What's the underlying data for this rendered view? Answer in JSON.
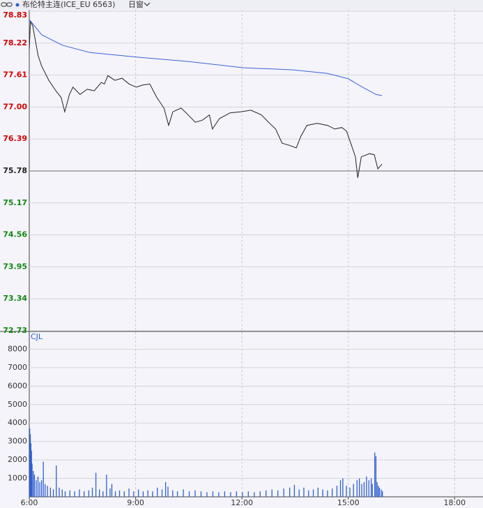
{
  "header": {
    "title": "布伦特主连(ICE_EU 6563)",
    "window": "日窗"
  },
  "chart_data": [
    {
      "type": "line",
      "xlim": [
        360,
        1128
      ],
      "ylim": [
        72.73,
        78.83
      ],
      "yticks": [
        {
          "value": 78.83,
          "label": "78.83"
        },
        {
          "value": 78.22,
          "label": "78.22"
        },
        {
          "value": 77.61,
          "label": "77.61"
        },
        {
          "value": 77.0,
          "label": "77.00"
        },
        {
          "value": 76.39,
          "label": "76.39"
        },
        {
          "value": 75.78,
          "label": "75.78"
        },
        {
          "value": 75.17,
          "label": "75.17"
        },
        {
          "value": 74.56,
          "label": "74.56"
        },
        {
          "value": 73.95,
          "label": "73.95"
        },
        {
          "value": 73.34,
          "label": "73.34"
        },
        {
          "value": 72.73,
          "label": "72.73"
        }
      ],
      "xticks": [
        540,
        720,
        900,
        1080
      ],
      "grid": true,
      "prev_close": 75.78,
      "up_color": "#d40000",
      "down_color": "#118811",
      "series": [
        {
          "color": "#222222",
          "x": [
            360,
            362,
            366,
            375,
            381,
            393,
            405,
            414,
            420,
            428,
            434,
            446,
            458,
            470,
            482,
            487,
            493,
            505,
            517,
            529,
            541,
            552,
            564,
            576,
            588,
            596,
            603,
            617,
            629,
            641,
            653,
            665,
            670,
            682,
            700,
            718,
            735,
            753,
            765,
            777,
            788,
            800,
            812,
            820,
            830,
            847,
            865,
            877,
            889,
            897,
            906,
            912,
            916,
            922,
            936,
            944,
            950,
            957
          ],
          "values": [
            78.11,
            78.64,
            78.54,
            77.98,
            77.78,
            77.51,
            77.31,
            77.18,
            76.91,
            77.24,
            77.38,
            77.24,
            77.34,
            77.31,
            77.47,
            77.44,
            77.6,
            77.51,
            77.55,
            77.44,
            77.38,
            77.42,
            77.44,
            77.18,
            76.98,
            76.65,
            76.91,
            76.98,
            76.85,
            76.71,
            76.75,
            76.85,
            76.58,
            76.78,
            76.89,
            76.91,
            76.94,
            76.85,
            76.71,
            76.58,
            76.31,
            76.27,
            76.22,
            76.45,
            76.65,
            76.69,
            76.65,
            76.58,
            76.61,
            76.54,
            76.25,
            76.05,
            75.65,
            76.05,
            76.11,
            76.09,
            75.82,
            75.91
          ]
        },
        {
          "color": "#3b63d6",
          "x": [
            360,
            381,
            416,
            463,
            546,
            629,
            723,
            806,
            865,
            900,
            924,
            947,
            957
          ],
          "values": [
            78.67,
            78.38,
            78.18,
            78.04,
            77.95,
            77.87,
            77.75,
            77.71,
            77.64,
            77.54,
            77.38,
            77.24,
            77.22
          ]
        }
      ]
    },
    {
      "type": "bar",
      "label": "CJL",
      "xlim": [
        360,
        1128
      ],
      "ylim": [
        0,
        9000
      ],
      "yticks": [
        1000,
        2000,
        3000,
        4000,
        5000,
        6000,
        7000,
        8000
      ],
      "xticks": [
        {
          "value": 360,
          "label": "6:00"
        },
        {
          "value": 540,
          "label": "9:00"
        },
        {
          "value": 720,
          "label": "12:00"
        },
        {
          "value": 900,
          "label": "15:00"
        },
        {
          "value": 1080,
          "label": "18:00"
        }
      ],
      "grid": true,
      "color": "#2f5fd0",
      "x": [
        360,
        361,
        362,
        363,
        364,
        366,
        368,
        371,
        374,
        377,
        380,
        383,
        386,
        390,
        395,
        400,
        405,
        410,
        415,
        420,
        428,
        436,
        444,
        452,
        460,
        466,
        472,
        478,
        484,
        490,
        496,
        499,
        505,
        512,
        520,
        528,
        536,
        544,
        552,
        560,
        568,
        576,
        584,
        590,
        594,
        602,
        610,
        620,
        630,
        640,
        650,
        660,
        670,
        680,
        690,
        700,
        710,
        720,
        730,
        740,
        750,
        760,
        770,
        780,
        790,
        800,
        808,
        816,
        824,
        832,
        840,
        848,
        856,
        864,
        872,
        880,
        886,
        890,
        896,
        902,
        908,
        914,
        918,
        922,
        926,
        930,
        934,
        938,
        940,
        944,
        946,
        948,
        950,
        952,
        955,
        957
      ],
      "values": [
        3700,
        3400,
        2900,
        2500,
        1800,
        1400,
        1200,
        900,
        1100,
        800,
        900,
        1900,
        700,
        600,
        500,
        400,
        1700,
        500,
        400,
        300,
        350,
        300,
        400,
        300,
        350,
        500,
        1300,
        400,
        300,
        1200,
        450,
        700,
        300,
        350,
        300,
        450,
        300,
        400,
        300,
        350,
        300,
        500,
        400,
        800,
        550,
        350,
        300,
        400,
        300,
        350,
        300,
        250,
        300,
        250,
        300,
        250,
        300,
        250,
        300,
        250,
        300,
        350,
        400,
        350,
        450,
        500,
        650,
        400,
        500,
        350,
        400,
        500,
        400,
        350,
        450,
        600,
        900,
        1000,
        600,
        500,
        700,
        900,
        1000,
        700,
        800,
        1100,
        900,
        1000,
        700,
        2400,
        2200,
        800,
        600,
        500,
        400,
        300
      ]
    }
  ]
}
